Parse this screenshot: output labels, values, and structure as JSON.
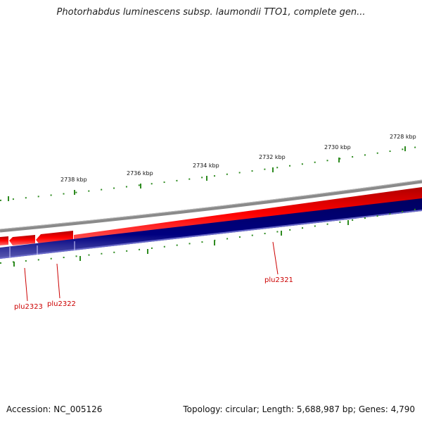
{
  "title": "Photorhabdus luminescens subsp. laumondii TTO1, complete gen...",
  "scale_labels": [
    "2738 kbp",
    "2736 kbp",
    "2734 kbp",
    "2732 kbp",
    "2730 kbp",
    "2728 kbp"
  ],
  "genes": [
    "plu2323",
    "plu2322",
    "plu2321"
  ],
  "footer": {
    "accession": "Accession: NC_005126",
    "summary": "Topology: circular; Length: 5,688,987 bp; Genes: 4,790"
  },
  "colors": {
    "backbone": "#888888",
    "forward_strand": "#ff0000",
    "reverse_strand": "#000080",
    "ticks": "#2e8b20",
    "label": "#cc0000"
  }
}
